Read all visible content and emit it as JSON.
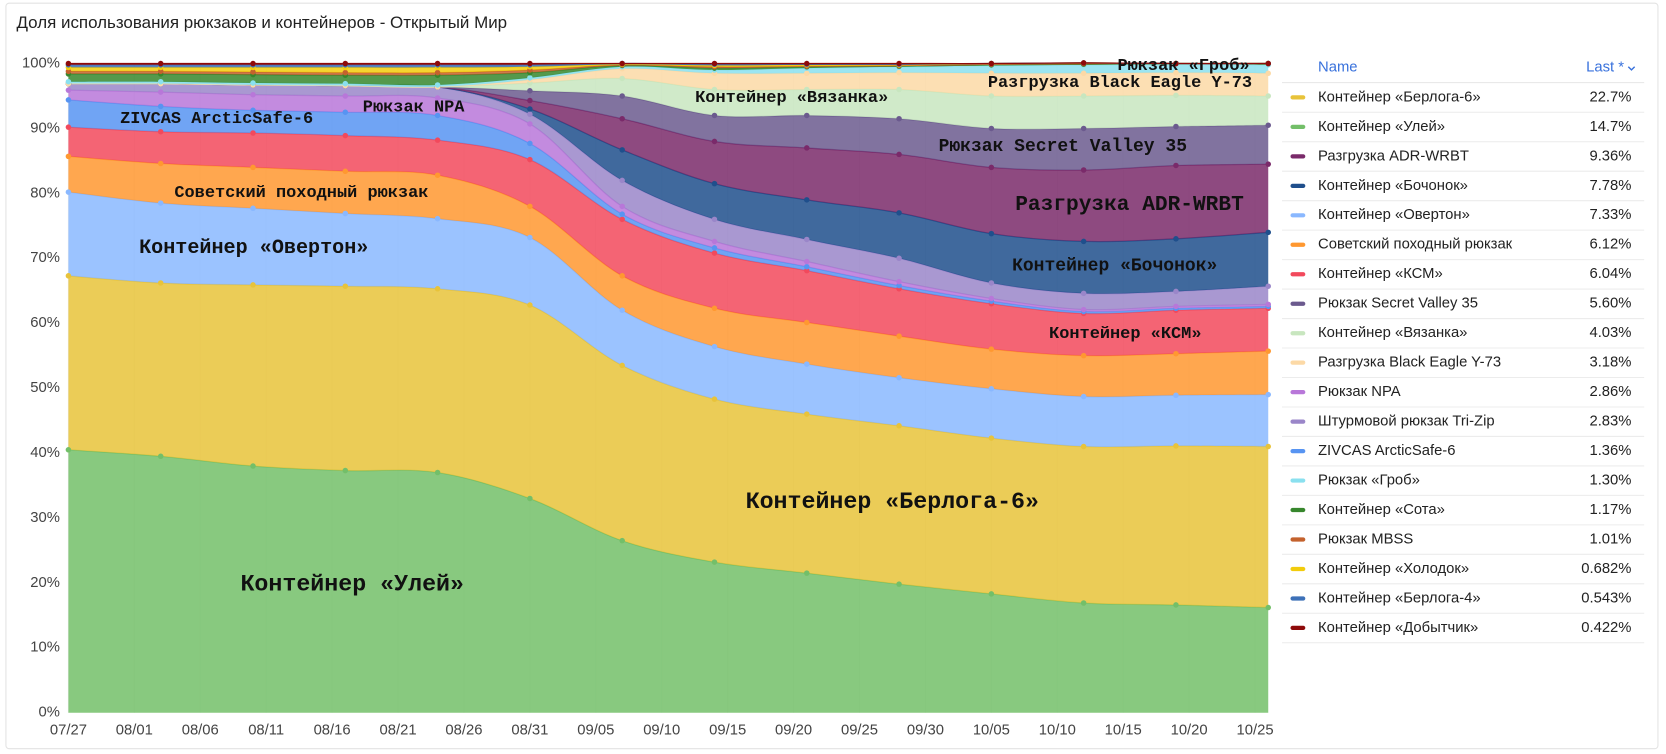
{
  "chart_data": {
    "type": "stacked_area",
    "title": "Доля использования рюкзаков и контейнеров - Открытый Мир",
    "legend_header": {
      "name": "Name",
      "last": "Last *"
    },
    "x": [
      "07/27",
      "08/03",
      "08/10",
      "08/17",
      "08/24",
      "08/31",
      "09/07",
      "09/14",
      "09/21",
      "09/28",
      "10/05",
      "10/12",
      "10/19",
      "10/26"
    ],
    "xlim": [
      "07/27",
      "10/26"
    ],
    "xticks": [
      "07/27",
      "08/01",
      "08/06",
      "08/11",
      "08/16",
      "08/21",
      "08/26",
      "08/31",
      "09/05",
      "09/10",
      "09/15",
      "09/20",
      "09/25",
      "09/30",
      "10/05",
      "10/10",
      "10/15",
      "10/20",
      "10/25"
    ],
    "ylim": [
      0,
      100
    ],
    "yticks": [
      {
        "value": 0,
        "label": "0%"
      },
      {
        "value": 10,
        "label": "10%"
      },
      {
        "value": 20,
        "label": "20%"
      },
      {
        "value": 30,
        "label": "30%"
      },
      {
        "value": 40,
        "label": "40%"
      },
      {
        "value": 50,
        "label": "50%"
      },
      {
        "value": 60,
        "label": "60%"
      },
      {
        "value": 70,
        "label": "70%"
      },
      {
        "value": 80,
        "label": "80%"
      },
      {
        "value": 90,
        "label": "90%"
      },
      {
        "value": 100,
        "label": "100%"
      }
    ],
    "grid": true,
    "series": [
      {
        "name": "Контейнер «Улей»",
        "color": "#73bf69",
        "last": 14.7,
        "last_label": "14.7%",
        "values": [
          40.5,
          39.5,
          38,
          37.3,
          37,
          33,
          26.5,
          23.2,
          21.5,
          19.8,
          18.3,
          16.9,
          16.6,
          16.2
        ]
      },
      {
        "name": "Контейнер «Берлога-6»",
        "color": "#e8c33a",
        "last": 22.7,
        "last_label": "22.7%",
        "values": [
          26.8,
          26.7,
          27.9,
          28.4,
          28.3,
          29.8,
          27,
          25.1,
          24.5,
          24.4,
          24,
          24.1,
          24.5,
          24.8
        ]
      },
      {
        "name": "Контейнер «Овертон»",
        "color": "#8ab8ff",
        "last": 7.33,
        "last_label": "7.33%",
        "values": [
          12.9,
          12.3,
          11.8,
          11.2,
          10.8,
          10.4,
          8.5,
          8.1,
          7.7,
          7.4,
          7.6,
          7.7,
          7.8,
          8
        ]
      },
      {
        "name": "Советский походный рюкзак",
        "color": "#ff9830",
        "last": 6.12,
        "last_label": "6.12%",
        "values": [
          5.5,
          6.1,
          6.3,
          6.5,
          6.7,
          4.8,
          5.3,
          5.9,
          6.4,
          6.4,
          6.1,
          6.3,
          6.4,
          6.7
        ]
      },
      {
        "name": "Контейнер «КСМ»",
        "color": "#f2495c",
        "last": 6.04,
        "last_label": "6.04%",
        "values": [
          4.5,
          4.9,
          5.3,
          5.5,
          5.4,
          7.2,
          8.7,
          8.5,
          8,
          7.3,
          7,
          6.5,
          6.7,
          6.6
        ]
      },
      {
        "name": "ZIVCAS ArcticSafe-6",
        "color": "#5794f2",
        "last": 1.36,
        "last_label": "1.36%",
        "values": [
          4.2,
          3.9,
          3.5,
          3.6,
          3.8,
          2.5,
          0.8,
          0.8,
          0.6,
          0.5,
          0.4,
          0.3,
          0.3,
          0.3
        ]
      },
      {
        "name": "Рюкзак NPA",
        "color": "#b877d9",
        "last": 2.86,
        "last_label": "2.86%",
        "values": [
          1.5,
          2.2,
          2.4,
          2.5,
          2.7,
          3,
          1.2,
          1,
          0.8,
          0.6,
          0.4,
          0.3,
          0.3,
          0.3
        ]
      },
      {
        "name": "Штурмовой рюкзак Tri-Zip",
        "color": "#9a86c9",
        "last": 2.83,
        "last_label": "2.83%",
        "values": [
          1,
          1.3,
          1.5,
          1.6,
          1.7,
          1.5,
          4,
          3.4,
          3.4,
          3.6,
          2.4,
          2.5,
          2.3,
          2.8
        ]
      },
      {
        "name": "Контейнер «Бочонок»",
        "color": "#1f4f8c",
        "last": 7.78,
        "last_label": "7.78%",
        "values": [
          0,
          0,
          0,
          0,
          0,
          0.8,
          4.7,
          5.5,
          6.1,
          7,
          7.6,
          8,
          8.1,
          8.3
        ]
      },
      {
        "name": "Разгрузка ADR-WRBT",
        "color": "#7a2a6a",
        "last": 9.36,
        "last_label": "9.36%",
        "values": [
          0,
          0,
          0,
          0,
          0,
          1.3,
          4.8,
          6.5,
          8,
          9,
          10.2,
          11,
          11.3,
          10.5
        ]
      },
      {
        "name": "Рюкзак Secret Valley 35",
        "color": "#6b5a8e",
        "last": 5.6,
        "last_label": "5.60%",
        "values": [
          0,
          0,
          0,
          0,
          0,
          1.5,
          3.5,
          4,
          5,
          5.5,
          6,
          6.4,
          6,
          6
        ]
      },
      {
        "name": "Контейнер «Вязанка»",
        "color": "#c8e6bf",
        "last": 4.03,
        "last_label": "4.03%",
        "values": [
          0,
          0,
          0,
          0,
          0,
          1.2,
          2.7,
          4,
          4,
          4.5,
          5,
          5,
          4.8,
          4.5
        ]
      },
      {
        "name": "Разгрузка Black Eagle Y-73",
        "color": "#fcd9a6",
        "last": 3.18,
        "last_label": "3.18%",
        "values": [
          0,
          0,
          0,
          0,
          0,
          0.5,
          1.5,
          2.5,
          2.5,
          2.6,
          3.5,
          3.5,
          3.5,
          3.5
        ]
      },
      {
        "name": "Рюкзак «Гроб»",
        "color": "#8ae0ef",
        "last": 1.3,
        "last_label": "1.30%",
        "values": [
          0.3,
          0.3,
          0.3,
          0.3,
          0.3,
          0.3,
          0.3,
          0.5,
          0.8,
          0.9,
          1.2,
          1.3,
          1.3,
          1.3
        ]
      },
      {
        "name": "Контейнер «Сота»",
        "color": "#37872d",
        "last": 1.17,
        "last_label": "1.17%",
        "values": [
          1.2,
          1.2,
          1.3,
          1.3,
          1.5,
          0.8,
          0.2,
          0.3,
          0.2,
          0.1,
          0.1,
          0.1,
          0.1,
          0.2
        ]
      },
      {
        "name": "Рюкзак MBSS",
        "color": "#c4622d",
        "last": 1.01,
        "last_label": "1.01%",
        "values": [
          0.4,
          0.4,
          0.4,
          0.4,
          0.4,
          0.4,
          0.1,
          0.2,
          0.1,
          0.1,
          0.1,
          0.1,
          0,
          0
        ]
      },
      {
        "name": "Контейнер «Холодок»",
        "color": "#f2cc0c",
        "last": 0.682,
        "last_label": "0.682%",
        "values": [
          0.6,
          0.6,
          0.7,
          0.8,
          0.8,
          0.5,
          0.1,
          0.2,
          0.2,
          0.1,
          0.1,
          0.1,
          0,
          0
        ]
      },
      {
        "name": "Контейнер «Берлога-4»",
        "color": "#3d71b8",
        "last": 0.543,
        "last_label": "0.543%",
        "values": [
          0.4,
          0.4,
          0.4,
          0.4,
          0.4,
          0.3,
          0.1,
          0.2,
          0.1,
          0.1,
          0,
          0,
          0,
          0
        ]
      },
      {
        "name": "Контейнер «Добытчик»",
        "color": "#8e0a0a",
        "last": 0.422,
        "last_label": "0.422%",
        "values": [
          0.2,
          0.2,
          0.2,
          0.2,
          0.2,
          0.2,
          0,
          0.1,
          0.1,
          0.1,
          0,
          0,
          0,
          0
        ]
      }
    ]
  }
}
